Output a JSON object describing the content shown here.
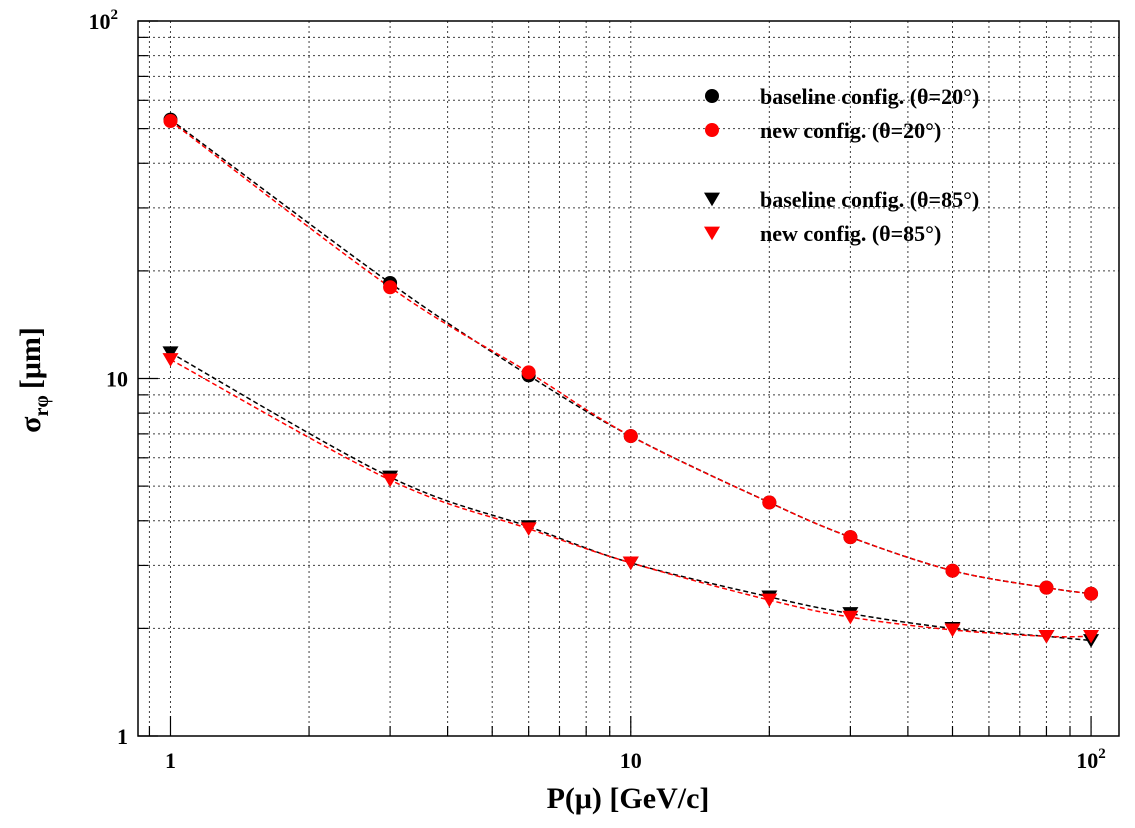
{
  "chart_data": {
    "type": "scatter",
    "title": "",
    "xlabel": "P(μ) [GeV/c]",
    "ylabel_main": "σ",
    "ylabel_sub": "rφ",
    "ylabel_unit": "[μm]",
    "xscale": "log",
    "yscale": "log",
    "xlim": [
      0.85,
      115
    ],
    "ylim": [
      1,
      100
    ],
    "grid": true,
    "legend_position": "top-right",
    "x_ticks": [
      {
        "value": 1,
        "base": "1",
        "exp": ""
      },
      {
        "value": 10,
        "base": "10",
        "exp": ""
      },
      {
        "value": 100,
        "base": "10",
        "exp": "2"
      }
    ],
    "y_ticks": [
      {
        "value": 1,
        "base": "1",
        "exp": ""
      },
      {
        "value": 10,
        "base": "10",
        "exp": ""
      },
      {
        "value": 100,
        "base": "10",
        "exp": "2"
      }
    ],
    "series": [
      {
        "name": "baseline config. (θ=20°)",
        "marker": "circle",
        "color": "#000000",
        "x": [
          1,
          3,
          6,
          10,
          20,
          30,
          50,
          80,
          100
        ],
        "y": [
          53,
          18.5,
          10.2,
          6.9,
          4.5,
          3.6,
          2.9,
          2.6,
          2.5
        ]
      },
      {
        "name": "new config. (θ=20°)",
        "marker": "circle",
        "color": "#ff0000",
        "x": [
          1,
          3,
          6,
          10,
          20,
          30,
          50,
          80,
          100
        ],
        "y": [
          52.5,
          18,
          10.4,
          6.9,
          4.5,
          3.6,
          2.9,
          2.6,
          2.5
        ]
      },
      {
        "name": "baseline config. (θ=85°)",
        "marker": "triangle-down",
        "color": "#000000",
        "x": [
          1,
          3,
          6,
          10,
          20,
          30,
          50,
          80,
          100
        ],
        "y": [
          11.8,
          5.3,
          3.85,
          3.05,
          2.45,
          2.2,
          2.0,
          1.9,
          1.85
        ]
      },
      {
        "name": "new config. (θ=85°)",
        "marker": "triangle-down",
        "color": "#ff0000",
        "x": [
          1,
          3,
          6,
          10,
          20,
          30,
          50,
          80,
          100
        ],
        "y": [
          11.3,
          5.2,
          3.8,
          3.05,
          2.4,
          2.15,
          1.98,
          1.9,
          1.9
        ]
      }
    ]
  }
}
